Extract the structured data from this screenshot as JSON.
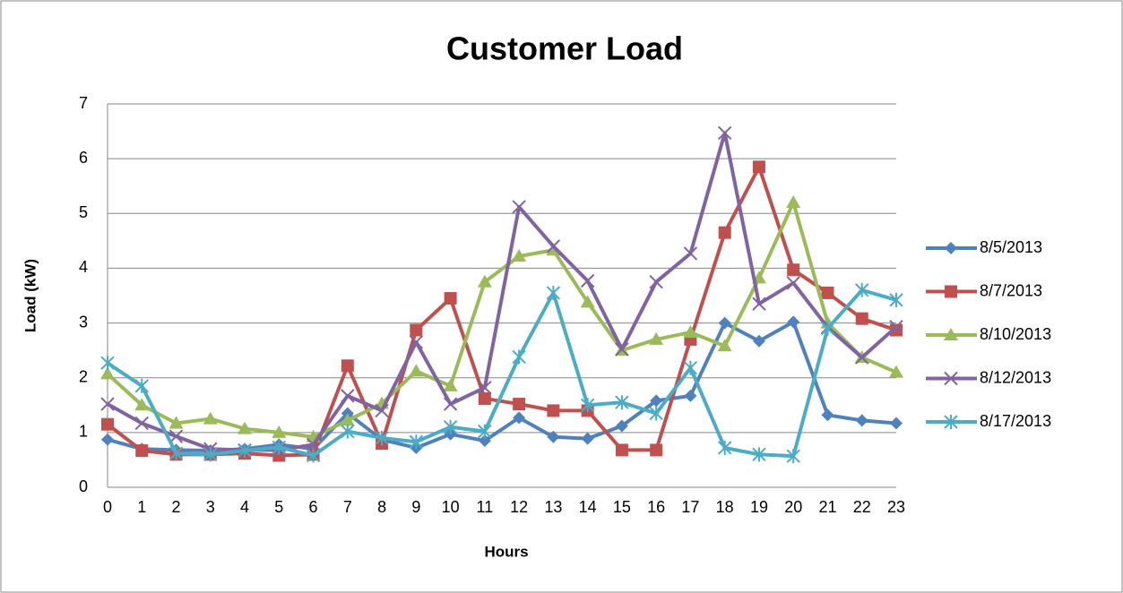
{
  "chart_data": {
    "type": "line",
    "title": "Customer Load",
    "x_label": "Hours",
    "y_label": "Load (kW)",
    "categories": [
      "0",
      "1",
      "2",
      "3",
      "4",
      "5",
      "6",
      "7",
      "8",
      "9",
      "10",
      "11",
      "12",
      "13",
      "14",
      "15",
      "16",
      "17",
      "18",
      "19",
      "20",
      "21",
      "22",
      "23"
    ],
    "ylim": [
      0,
      7
    ],
    "yticks": [
      0,
      1,
      2,
      3,
      4,
      5,
      6,
      7
    ],
    "grid": true,
    "legend": "right",
    "series": [
      {
        "name": "8/5/2013",
        "color": "#4f81bd",
        "marker": "diamond",
        "values": [
          0.87,
          0.7,
          0.68,
          0.67,
          0.7,
          0.78,
          0.7,
          1.35,
          0.87,
          0.72,
          0.97,
          0.85,
          1.27,
          0.92,
          0.89,
          1.12,
          1.58,
          1.67,
          3.0,
          2.67,
          3.02,
          1.32,
          1.22,
          1.17
        ]
      },
      {
        "name": "8/7/2013",
        "color": "#c0504d",
        "marker": "square",
        "values": [
          1.15,
          0.67,
          0.6,
          0.6,
          0.62,
          0.58,
          0.6,
          2.22,
          0.8,
          2.87,
          3.45,
          1.62,
          1.52,
          1.4,
          1.4,
          0.68,
          0.68,
          2.7,
          4.65,
          5.85,
          3.97,
          3.55,
          3.08,
          2.87
        ]
      },
      {
        "name": "8/10/2013",
        "color": "#9bbb59",
        "marker": "triangle",
        "values": [
          2.07,
          1.5,
          1.17,
          1.25,
          1.07,
          1.0,
          0.92,
          1.22,
          1.53,
          2.12,
          1.85,
          3.75,
          4.22,
          4.33,
          3.38,
          2.5,
          2.7,
          2.83,
          2.58,
          3.82,
          5.2,
          3.0,
          2.37,
          2.1
        ]
      },
      {
        "name": "8/12/2013",
        "color": "#8064a2",
        "marker": "x",
        "values": [
          1.52,
          1.17,
          0.93,
          0.7,
          0.68,
          0.68,
          0.78,
          1.67,
          1.4,
          2.65,
          1.52,
          1.82,
          5.12,
          4.4,
          3.77,
          2.52,
          3.75,
          4.27,
          6.47,
          3.35,
          3.73,
          2.92,
          2.37,
          2.93
        ]
      },
      {
        "name": "8/17/2013",
        "color": "#4bacc6",
        "marker": "star",
        "values": [
          2.27,
          1.85,
          0.62,
          0.6,
          0.67,
          0.73,
          0.58,
          1.02,
          0.9,
          0.83,
          1.1,
          1.02,
          2.38,
          3.55,
          1.5,
          1.55,
          1.35,
          2.18,
          0.72,
          0.6,
          0.57,
          2.9,
          3.6,
          3.42
        ]
      }
    ]
  }
}
